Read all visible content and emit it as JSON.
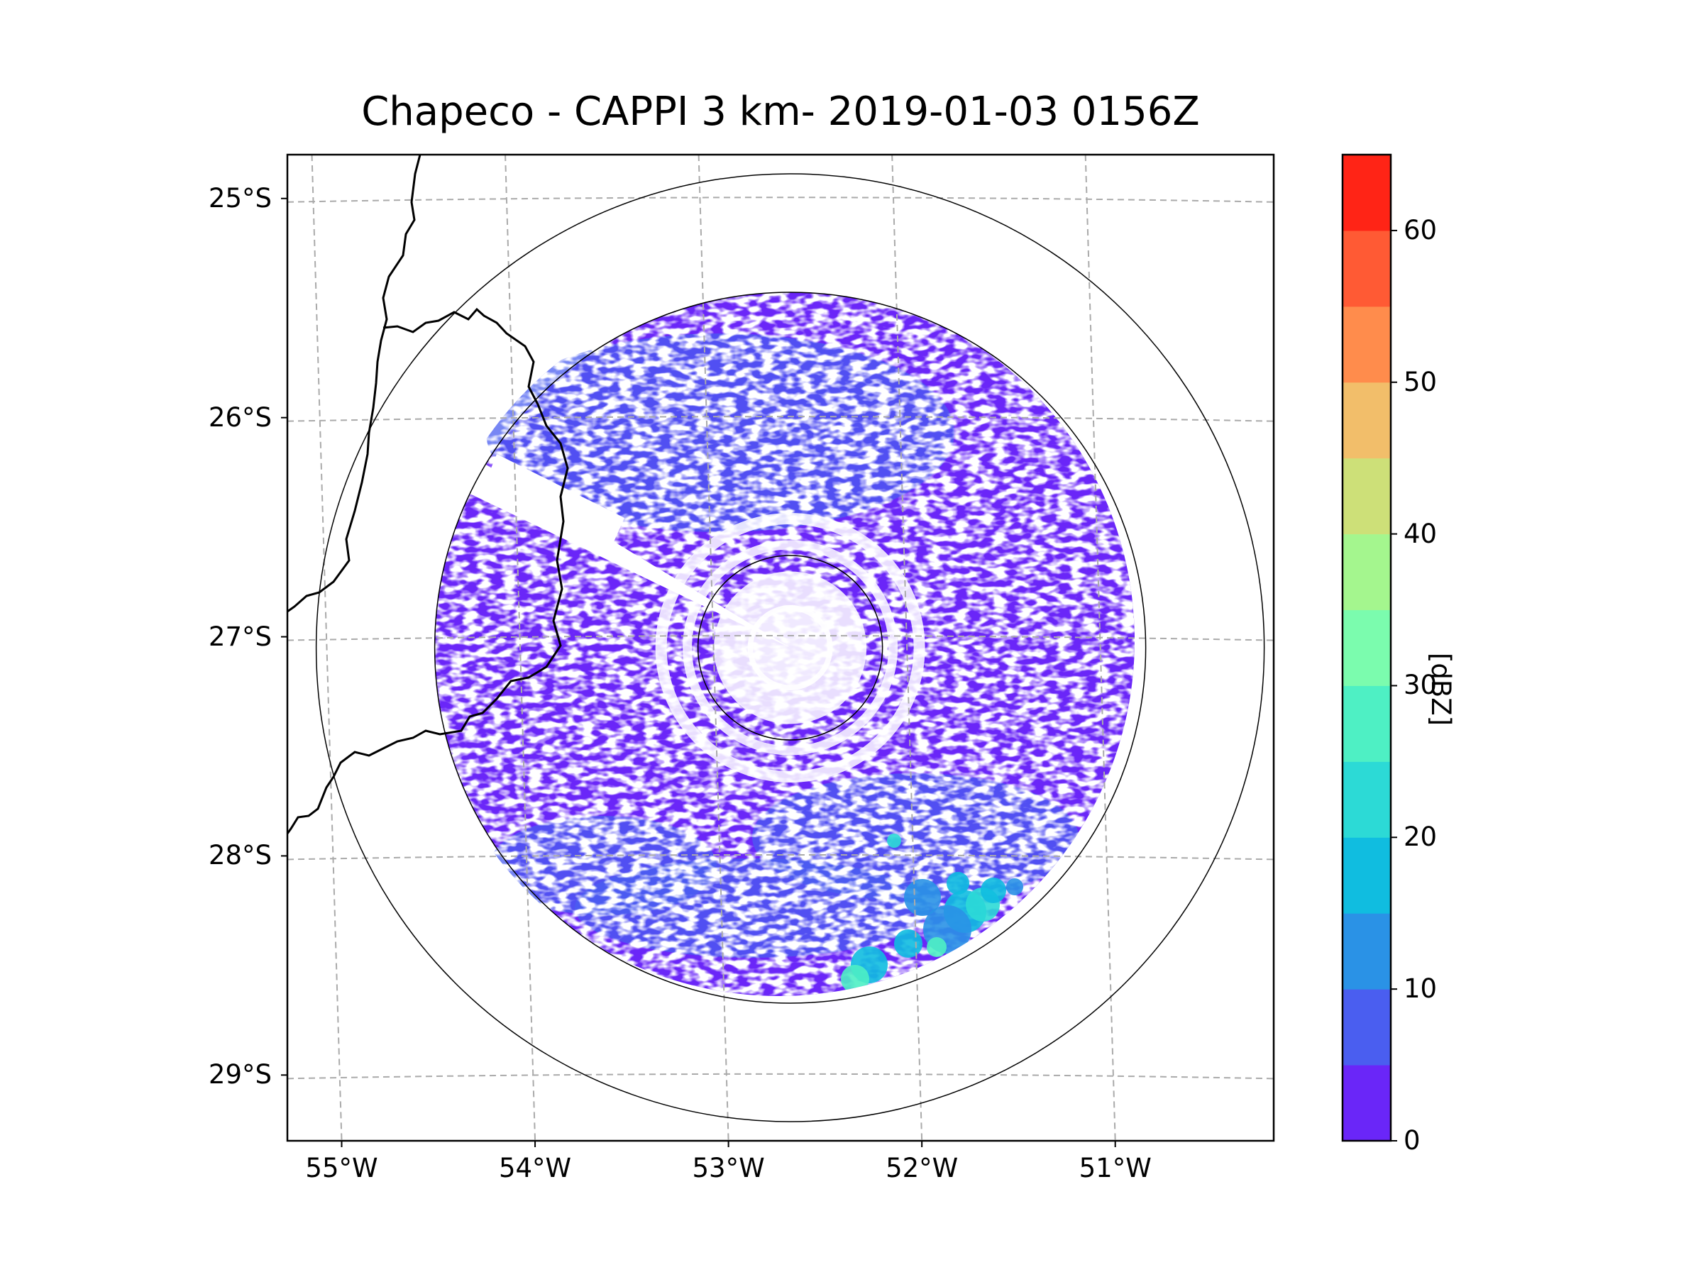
{
  "chart_data": {
    "type": "radar-reflectivity-map",
    "title": "Chapeco - CAPPI 3 km- 2019-01-03 0156Z",
    "radar_site": {
      "lon": -52.6,
      "lat": -27.05
    },
    "range_rings": [
      "inner",
      "data-limit",
      "outer"
    ],
    "lon_ticks": [
      {
        "value": -55,
        "label": "55°W"
      },
      {
        "value": -54,
        "label": "54°W"
      },
      {
        "value": -53,
        "label": "53°W"
      },
      {
        "value": -52,
        "label": "52°W"
      },
      {
        "value": -51,
        "label": "51°W"
      }
    ],
    "lat_ticks": [
      {
        "value": -25,
        "label": "25°S"
      },
      {
        "value": -26,
        "label": "26°S"
      },
      {
        "value": -27,
        "label": "27°S"
      },
      {
        "value": -28,
        "label": "28°S"
      },
      {
        "value": -29,
        "label": "29°S"
      }
    ],
    "lon_range": [
      -55.2,
      -50.1
    ],
    "lat_range": [
      -29.3,
      -24.8
    ],
    "colorbar": {
      "label": "[dBZ]",
      "range": [
        0,
        65
      ],
      "ticks": [
        0,
        10,
        20,
        30,
        40,
        50,
        60
      ],
      "bins": [
        {
          "from": 0,
          "to": 5,
          "color": "#6a26f8"
        },
        {
          "from": 5,
          "to": 10,
          "color": "#4a5ef0"
        },
        {
          "from": 10,
          "to": 15,
          "color": "#2a92e6"
        },
        {
          "from": 15,
          "to": 20,
          "color": "#10bde0"
        },
        {
          "from": 20,
          "to": 25,
          "color": "#2cdad6"
        },
        {
          "from": 25,
          "to": 30,
          "color": "#4ef0c4"
        },
        {
          "from": 30,
          "to": 35,
          "color": "#7bfcae"
        },
        {
          "from": 35,
          "to": 40,
          "color": "#a4f68e"
        },
        {
          "from": 40,
          "to": 45,
          "color": "#cde078"
        },
        {
          "from": 45,
          "to": 50,
          "color": "#f2be6a"
        },
        {
          "from": 50,
          "to": 55,
          "color": "#ff8c4c"
        },
        {
          "from": 55,
          "to": 60,
          "color": "#ff5a34"
        },
        {
          "from": 60,
          "to": 65,
          "color": "#ff2416"
        }
      ]
    },
    "echo_summary": "Widespread weak echoes (0-10 dBZ) within the radar range; stronger cells (15-40 dBZ) to the south-southeast near 52°W, 28.3°S"
  },
  "colors": {
    "grid": "#aaaaaa",
    "border": "#000000",
    "weak_echo": "#6a26f8",
    "light_echo": "#4a5ef0"
  }
}
